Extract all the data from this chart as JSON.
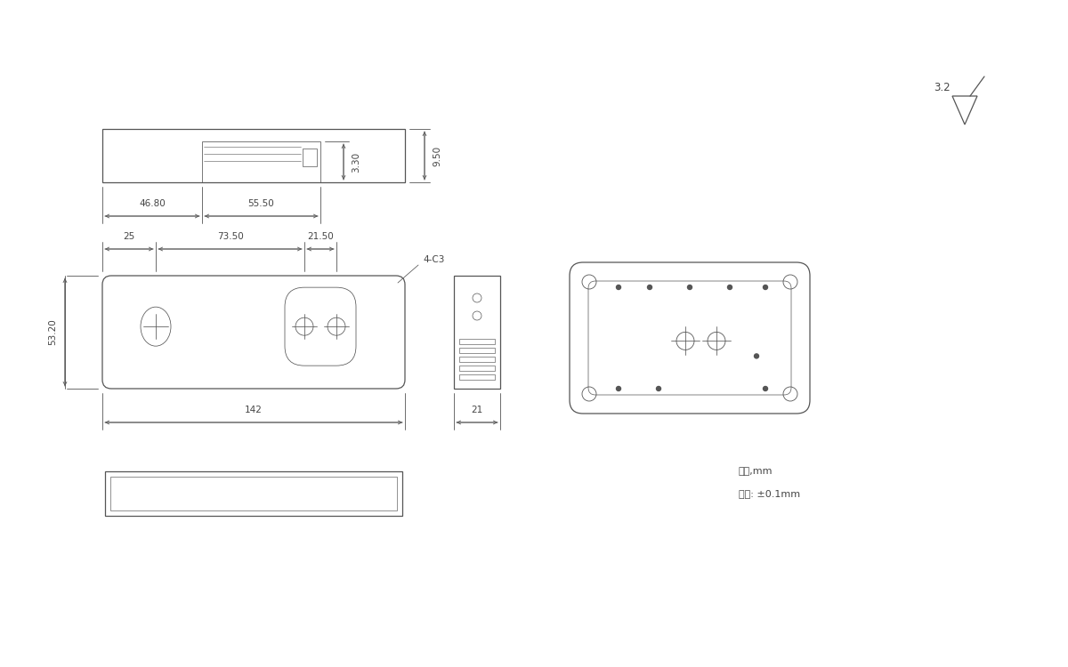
{
  "bg_color": "#ffffff",
  "line_color": "#555555",
  "dim_color": "#555555",
  "text_color": "#444444",
  "unit_text": "单位,mm",
  "precision_text": "精度: ±0.1mm",
  "surface_roughness": "3.2",
  "chamfer_label": "4-C3",
  "dim_9_50": "9.50",
  "dim_3_30": "3.30",
  "dim_46_80": "46.80",
  "dim_55_50": "55.50",
  "dim_25": "25",
  "dim_73_50": "73.50",
  "dim_21_50": "21.50",
  "dim_53_20": "53.20",
  "dim_142": "142",
  "dim_21": "21"
}
